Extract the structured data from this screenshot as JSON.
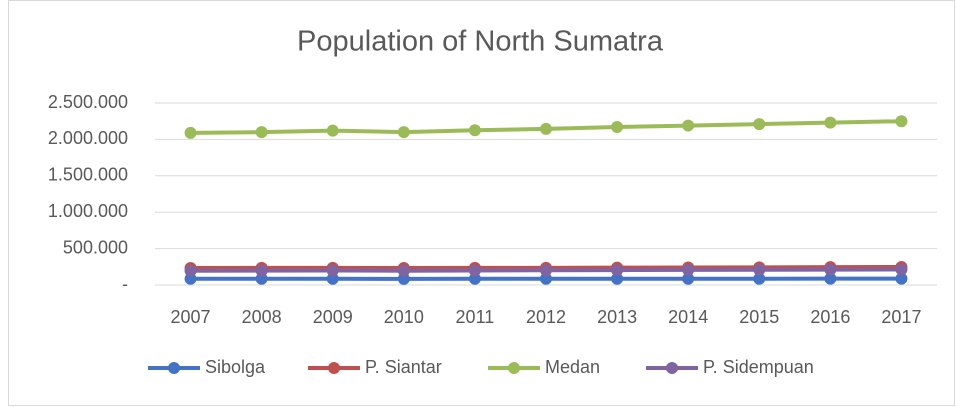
{
  "chart_data": {
    "type": "line",
    "title": "Population of North Sumatra",
    "categories": [
      "2007",
      "2008",
      "2009",
      "2010",
      "2011",
      "2012",
      "2013",
      "2014",
      "2015",
      "2016",
      "2017"
    ],
    "series": [
      {
        "name": "Sibolga",
        "color": "#4472c4",
        "values": [
          85000,
          86000,
          86500,
          84000,
          85000,
          85500,
          86000,
          86000,
          86500,
          87000,
          87000
        ]
      },
      {
        "name": "P. Siantar",
        "color": "#c0504d",
        "values": [
          234000,
          235000,
          236000,
          233000,
          235000,
          236000,
          238000,
          240000,
          242000,
          245000,
          247000
        ]
      },
      {
        "name": "Medan",
        "color": "#9bbb59",
        "values": [
          2090000,
          2100000,
          2120000,
          2100000,
          2125000,
          2145000,
          2170000,
          2190000,
          2210000,
          2230000,
          2250000
        ]
      },
      {
        "name": "P. Sidempuan",
        "color": "#8064a2",
        "values": [
          195000,
          197000,
          199000,
          196000,
          200000,
          202000,
          205000,
          207000,
          209000,
          211000,
          213000
        ]
      }
    ],
    "ylim": [
      0,
      2500000
    ],
    "yticks": [
      {
        "value": 0,
        "label": "-"
      },
      {
        "value": 500000,
        "label": "500.000"
      },
      {
        "value": 1000000,
        "label": "1.000.000"
      },
      {
        "value": 1500000,
        "label": "1.500.000"
      },
      {
        "value": 2000000,
        "label": "2.000.000"
      },
      {
        "value": 2500000,
        "label": "2.500.000"
      }
    ],
    "grid": true,
    "legend": "bottom"
  }
}
